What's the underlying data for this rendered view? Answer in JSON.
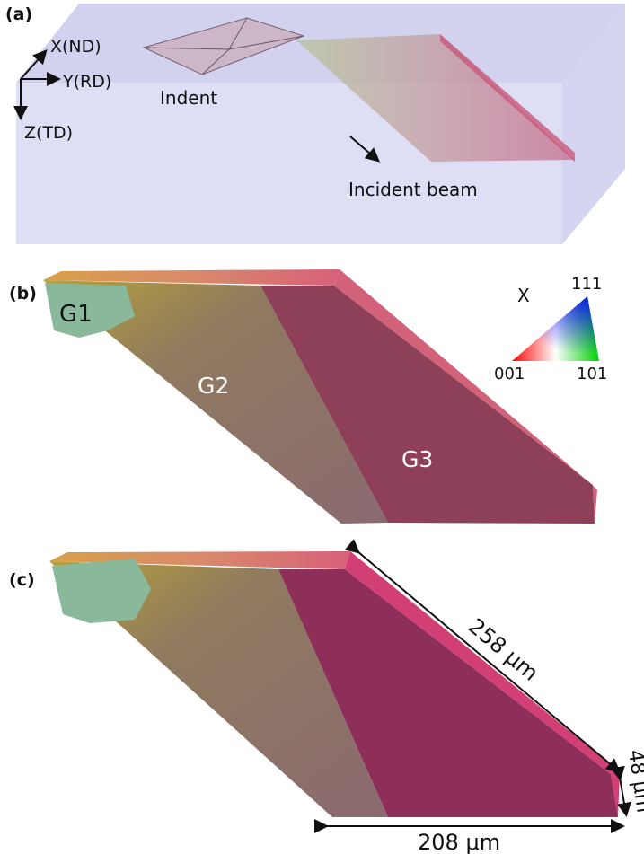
{
  "panels": {
    "a": {
      "label": "(a)",
      "axes": {
        "x": "X(ND)",
        "y": "Y(RD)",
        "z": "Z(TD)"
      },
      "indent_label": "Indent",
      "beam_label": "Incident beam"
    },
    "b": {
      "label": "(b)",
      "grains": [
        "G1",
        "G2",
        "G3"
      ],
      "ipf": {
        "direction": "X",
        "corner_111": "111",
        "corner_001": "001",
        "corner_101": "101"
      }
    },
    "c": {
      "label": "(c)",
      "dimensions": {
        "length": "258 μm",
        "width": "208 μm",
        "depth": "48 μm"
      }
    }
  },
  "colors": {
    "box_fill": "#c9c9ee",
    "grain_g1": "#86b59a",
    "grain_g2": "#8a6a6a",
    "grain_g3": "#8c3f55",
    "slab_side": "#d0607a",
    "slab_side_c": "#d23f75"
  }
}
